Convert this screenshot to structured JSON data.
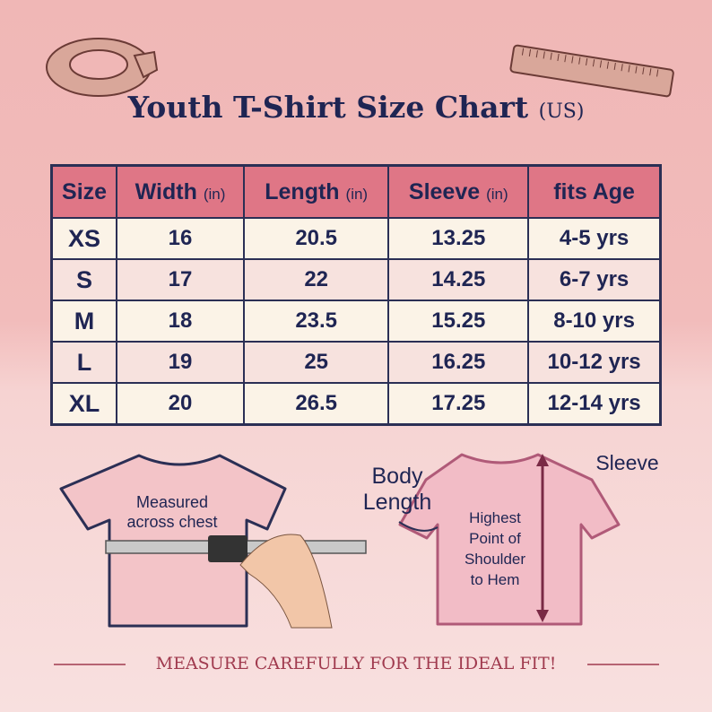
{
  "header": {
    "title": "Youth T-Shirt Size Chart",
    "title_suffix": "(US)"
  },
  "table": {
    "columns": [
      {
        "text": "Size"
      },
      {
        "text": "Width",
        "unit": "(in)"
      },
      {
        "text": "Length",
        "unit": "(in)"
      },
      {
        "text": "Sleeve",
        "unit": "(in)"
      },
      {
        "text": "fits Age"
      }
    ],
    "rows": [
      [
        "XS",
        "16",
        "20.5",
        "13.25",
        "4-5 yrs"
      ],
      [
        "S",
        "17",
        "22",
        "14.25",
        "6-7 yrs"
      ],
      [
        "M",
        "18",
        "23.5",
        "15.25",
        "8-10 yrs"
      ],
      [
        "L",
        "19",
        "25",
        "16.25",
        "10-12 yrs"
      ],
      [
        "XL",
        "20",
        "26.5",
        "17.25",
        "12-14 yrs"
      ]
    ]
  },
  "illustrations": {
    "chest_label": "Measured across chest",
    "body_length_label": "Body Length",
    "length_note": "Highest Point of Shoulder to Hem",
    "sleeve_label": "Sleeve"
  },
  "footer": {
    "text": "MEASURE CAREFULLY FOR THE IDEAL FIT!"
  }
}
